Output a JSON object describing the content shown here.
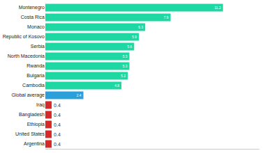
{
  "chart_data": {
    "type": "bar",
    "orientation": "horizontal",
    "categories": [
      "Montenegro",
      "Costa Rica",
      "Monaco",
      "Republic of Kosovo",
      "Serbia",
      "North Macedonia",
      "Rwanda",
      "Bulgaria",
      "Cambodia",
      "Global average",
      "Iraq",
      "Bangladesh",
      "Ethiopia",
      "United States",
      "Argentina"
    ],
    "values": [
      11.2,
      7.9,
      6.3,
      5.9,
      5.6,
      5.3,
      5.3,
      5.2,
      4.8,
      2.4,
      0.4,
      0.4,
      0.4,
      0.4,
      0.4
    ],
    "colors": [
      "#1ed8a3",
      "#1ed8a3",
      "#1ed8a3",
      "#1ed8a3",
      "#1ed8a3",
      "#1ed8a3",
      "#1ed8a3",
      "#1ed8a3",
      "#1ed8a3",
      "#2b9fd9",
      "#d62a2a",
      "#d62a2a",
      "#d62a2a",
      "#d62a2a",
      "#d62a2a"
    ],
    "xlim": [
      0,
      13.5
    ],
    "xticks": [],
    "data_labels": true,
    "tick_labels": "y",
    "grid": false
  }
}
